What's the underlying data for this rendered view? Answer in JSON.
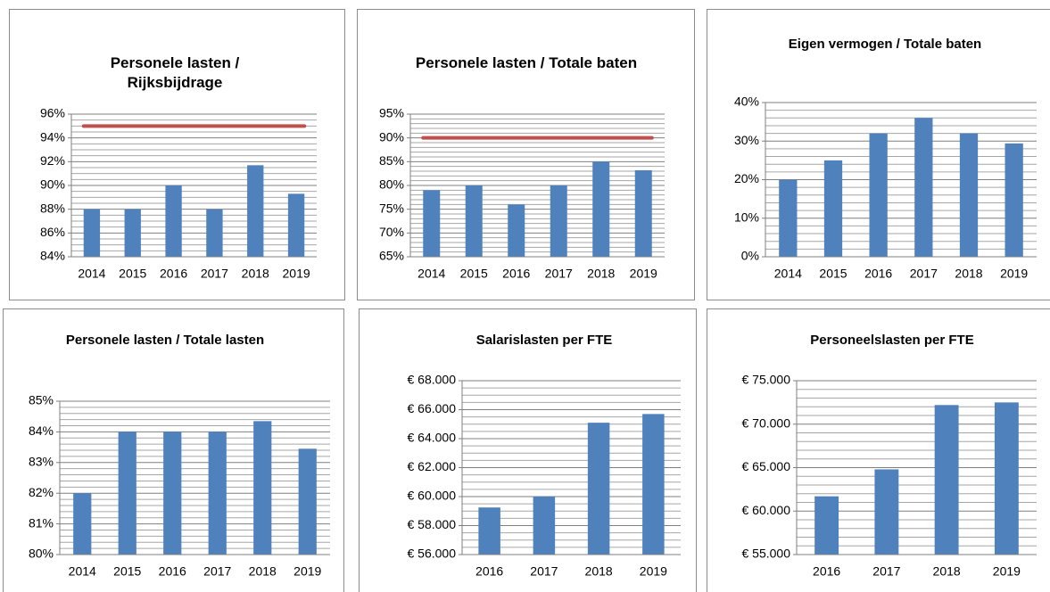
{
  "chart_data": [
    {
      "type": "bar",
      "title": "Personele lasten / Rijksbijdrage",
      "categories": [
        "2014",
        "2015",
        "2016",
        "2017",
        "2018",
        "2019"
      ],
      "values": [
        88,
        88,
        90,
        88,
        91.7,
        89.3
      ],
      "color": "#4f81bd",
      "ylim": [
        84,
        96
      ],
      "yticks": [
        {
          "value": 84,
          "label": "84%"
        },
        {
          "value": 86,
          "label": "86%"
        },
        {
          "value": 88,
          "label": "88%"
        },
        {
          "value": 90,
          "label": "90%"
        },
        {
          "value": 92,
          "label": "92%"
        },
        {
          "value": 94,
          "label": "94%"
        },
        {
          "value": 96,
          "label": "96%"
        }
      ],
      "grid": true,
      "minor_divisions": 4,
      "target": 95,
      "target_color": "#c0504d"
    },
    {
      "type": "bar",
      "title": "Personele lasten / Totale baten",
      "categories": [
        "2014",
        "2015",
        "2016",
        "2017",
        "2018",
        "2019"
      ],
      "values": [
        79,
        80,
        76,
        80,
        85,
        83.2
      ],
      "color": "#4f81bd",
      "ylim": [
        65,
        95
      ],
      "yticks": [
        {
          "value": 65,
          "label": "65%"
        },
        {
          "value": 70,
          "label": "70%"
        },
        {
          "value": 75,
          "label": "75%"
        },
        {
          "value": 80,
          "label": "80%"
        },
        {
          "value": 85,
          "label": "85%"
        },
        {
          "value": 90,
          "label": "90%"
        },
        {
          "value": 95,
          "label": "95%"
        }
      ],
      "grid": true,
      "minor_divisions": 5,
      "target": 90,
      "target_color": "#c0504d"
    },
    {
      "type": "bar",
      "title": "Eigen vermogen / Totale baten",
      "categories": [
        "2014",
        "2015",
        "2016",
        "2017",
        "2018",
        "2019"
      ],
      "values": [
        20,
        25,
        32,
        36,
        32,
        29.4
      ],
      "color": "#4f81bd",
      "ylim": [
        0,
        40
      ],
      "yticks": [
        {
          "value": 0,
          "label": "0%"
        },
        {
          "value": 10,
          "label": "10%"
        },
        {
          "value": 20,
          "label": "20%"
        },
        {
          "value": 30,
          "label": "30%"
        },
        {
          "value": 40,
          "label": "40%"
        }
      ],
      "grid": true,
      "minor_divisions": 5
    },
    {
      "type": "bar",
      "title": "Personele lasten / Totale lasten",
      "categories": [
        "2014",
        "2015",
        "2016",
        "2017",
        "2018",
        "2019"
      ],
      "values": [
        82,
        84,
        84,
        84,
        84.35,
        83.45
      ],
      "color": "#4f81bd",
      "ylim": [
        80,
        85
      ],
      "yticks": [
        {
          "value": 80,
          "label": "80%"
        },
        {
          "value": 81,
          "label": "81%"
        },
        {
          "value": 82,
          "label": "82%"
        },
        {
          "value": 83,
          "label": "83%"
        },
        {
          "value": 84,
          "label": "84%"
        },
        {
          "value": 85,
          "label": "85%"
        }
      ],
      "grid": true,
      "minor_divisions": 5
    },
    {
      "type": "bar",
      "title": "Salarislasten per FTE",
      "categories": [
        "2016",
        "2017",
        "2018",
        "2019"
      ],
      "values": [
        59250,
        60000,
        65100,
        65700
      ],
      "color": "#4f81bd",
      "ylim": [
        56000,
        68000
      ],
      "yticks": [
        {
          "value": 56000,
          "label": "€ 56.000"
        },
        {
          "value": 58000,
          "label": "€ 58.000"
        },
        {
          "value": 60000,
          "label": "€ 60.000"
        },
        {
          "value": 62000,
          "label": "€ 62.000"
        },
        {
          "value": 64000,
          "label": "€ 64.000"
        },
        {
          "value": 66000,
          "label": "€ 66.000"
        },
        {
          "value": 68000,
          "label": "€ 68.000"
        }
      ],
      "grid": true,
      "minor_divisions": 4
    },
    {
      "type": "bar",
      "title": "Personeelslasten per FTE",
      "categories": [
        "2016",
        "2017",
        "2018",
        "2019"
      ],
      "values": [
        61700,
        64800,
        72200,
        72500
      ],
      "color": "#4f81bd",
      "ylim": [
        55000,
        75000
      ],
      "yticks": [
        {
          "value": 55000,
          "label": "€ 55.000"
        },
        {
          "value": 60000,
          "label": "€ 60.000"
        },
        {
          "value": 65000,
          "label": "€ 65.000"
        },
        {
          "value": 70000,
          "label": "€ 70.000"
        },
        {
          "value": 75000,
          "label": "€ 75.000"
        }
      ],
      "grid": true,
      "minor_divisions": 5
    }
  ]
}
